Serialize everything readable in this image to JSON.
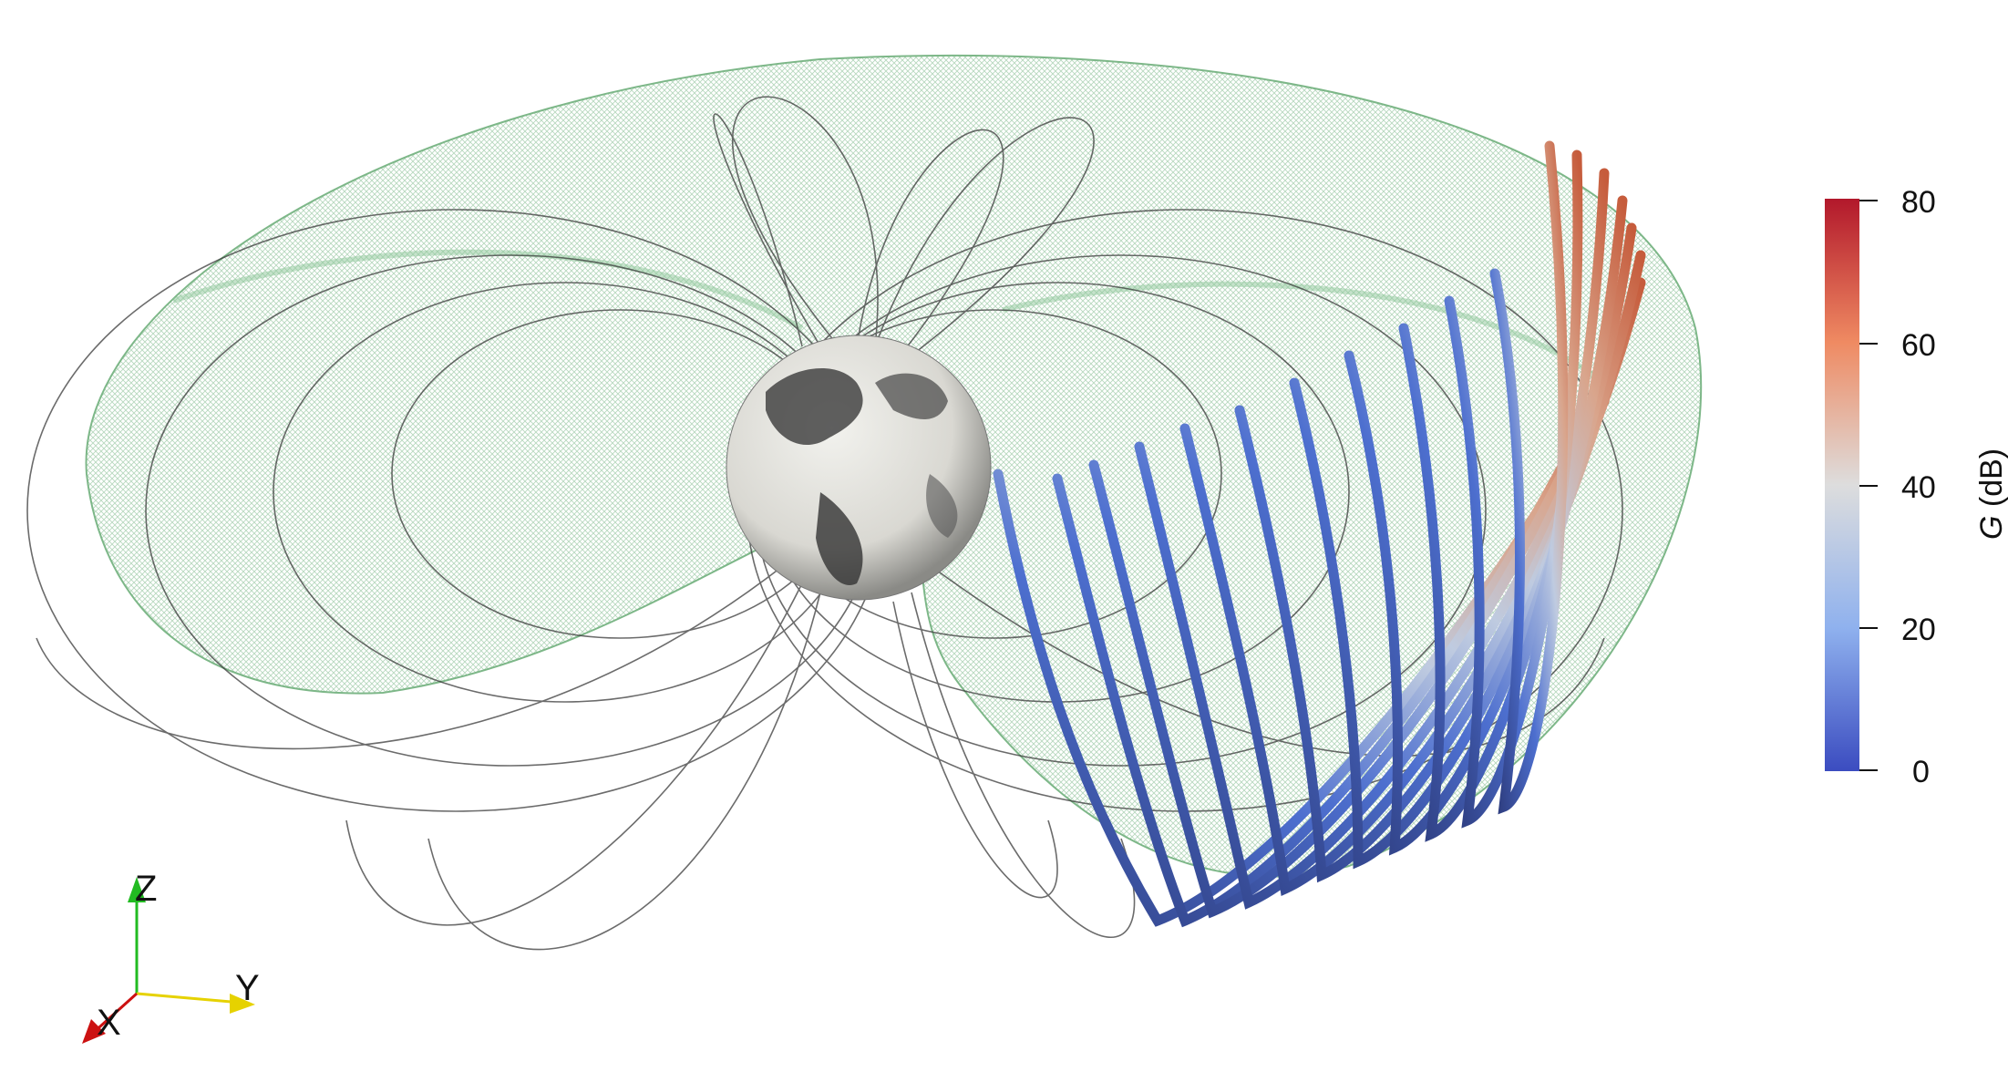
{
  "colorbar": {
    "title_var": "G",
    "title_unit": " (dB)",
    "ticks": [
      "80",
      "60",
      "40",
      "20",
      "0"
    ],
    "colors": [
      "#b2182b",
      "#ef8a62",
      "#dddddd",
      "#a9c5f0",
      "#3b4cc0"
    ]
  },
  "orientation_axes": {
    "x_label": "X",
    "y_label": "Y",
    "z_label": "Z",
    "x_color": "#cc1111",
    "y_color": "#e6d200",
    "z_color": "#22bb22"
  },
  "scene": {
    "torus_color": "#7fbf8a",
    "fieldline_color": "#333333",
    "globe_label": "earth-globe"
  }
}
